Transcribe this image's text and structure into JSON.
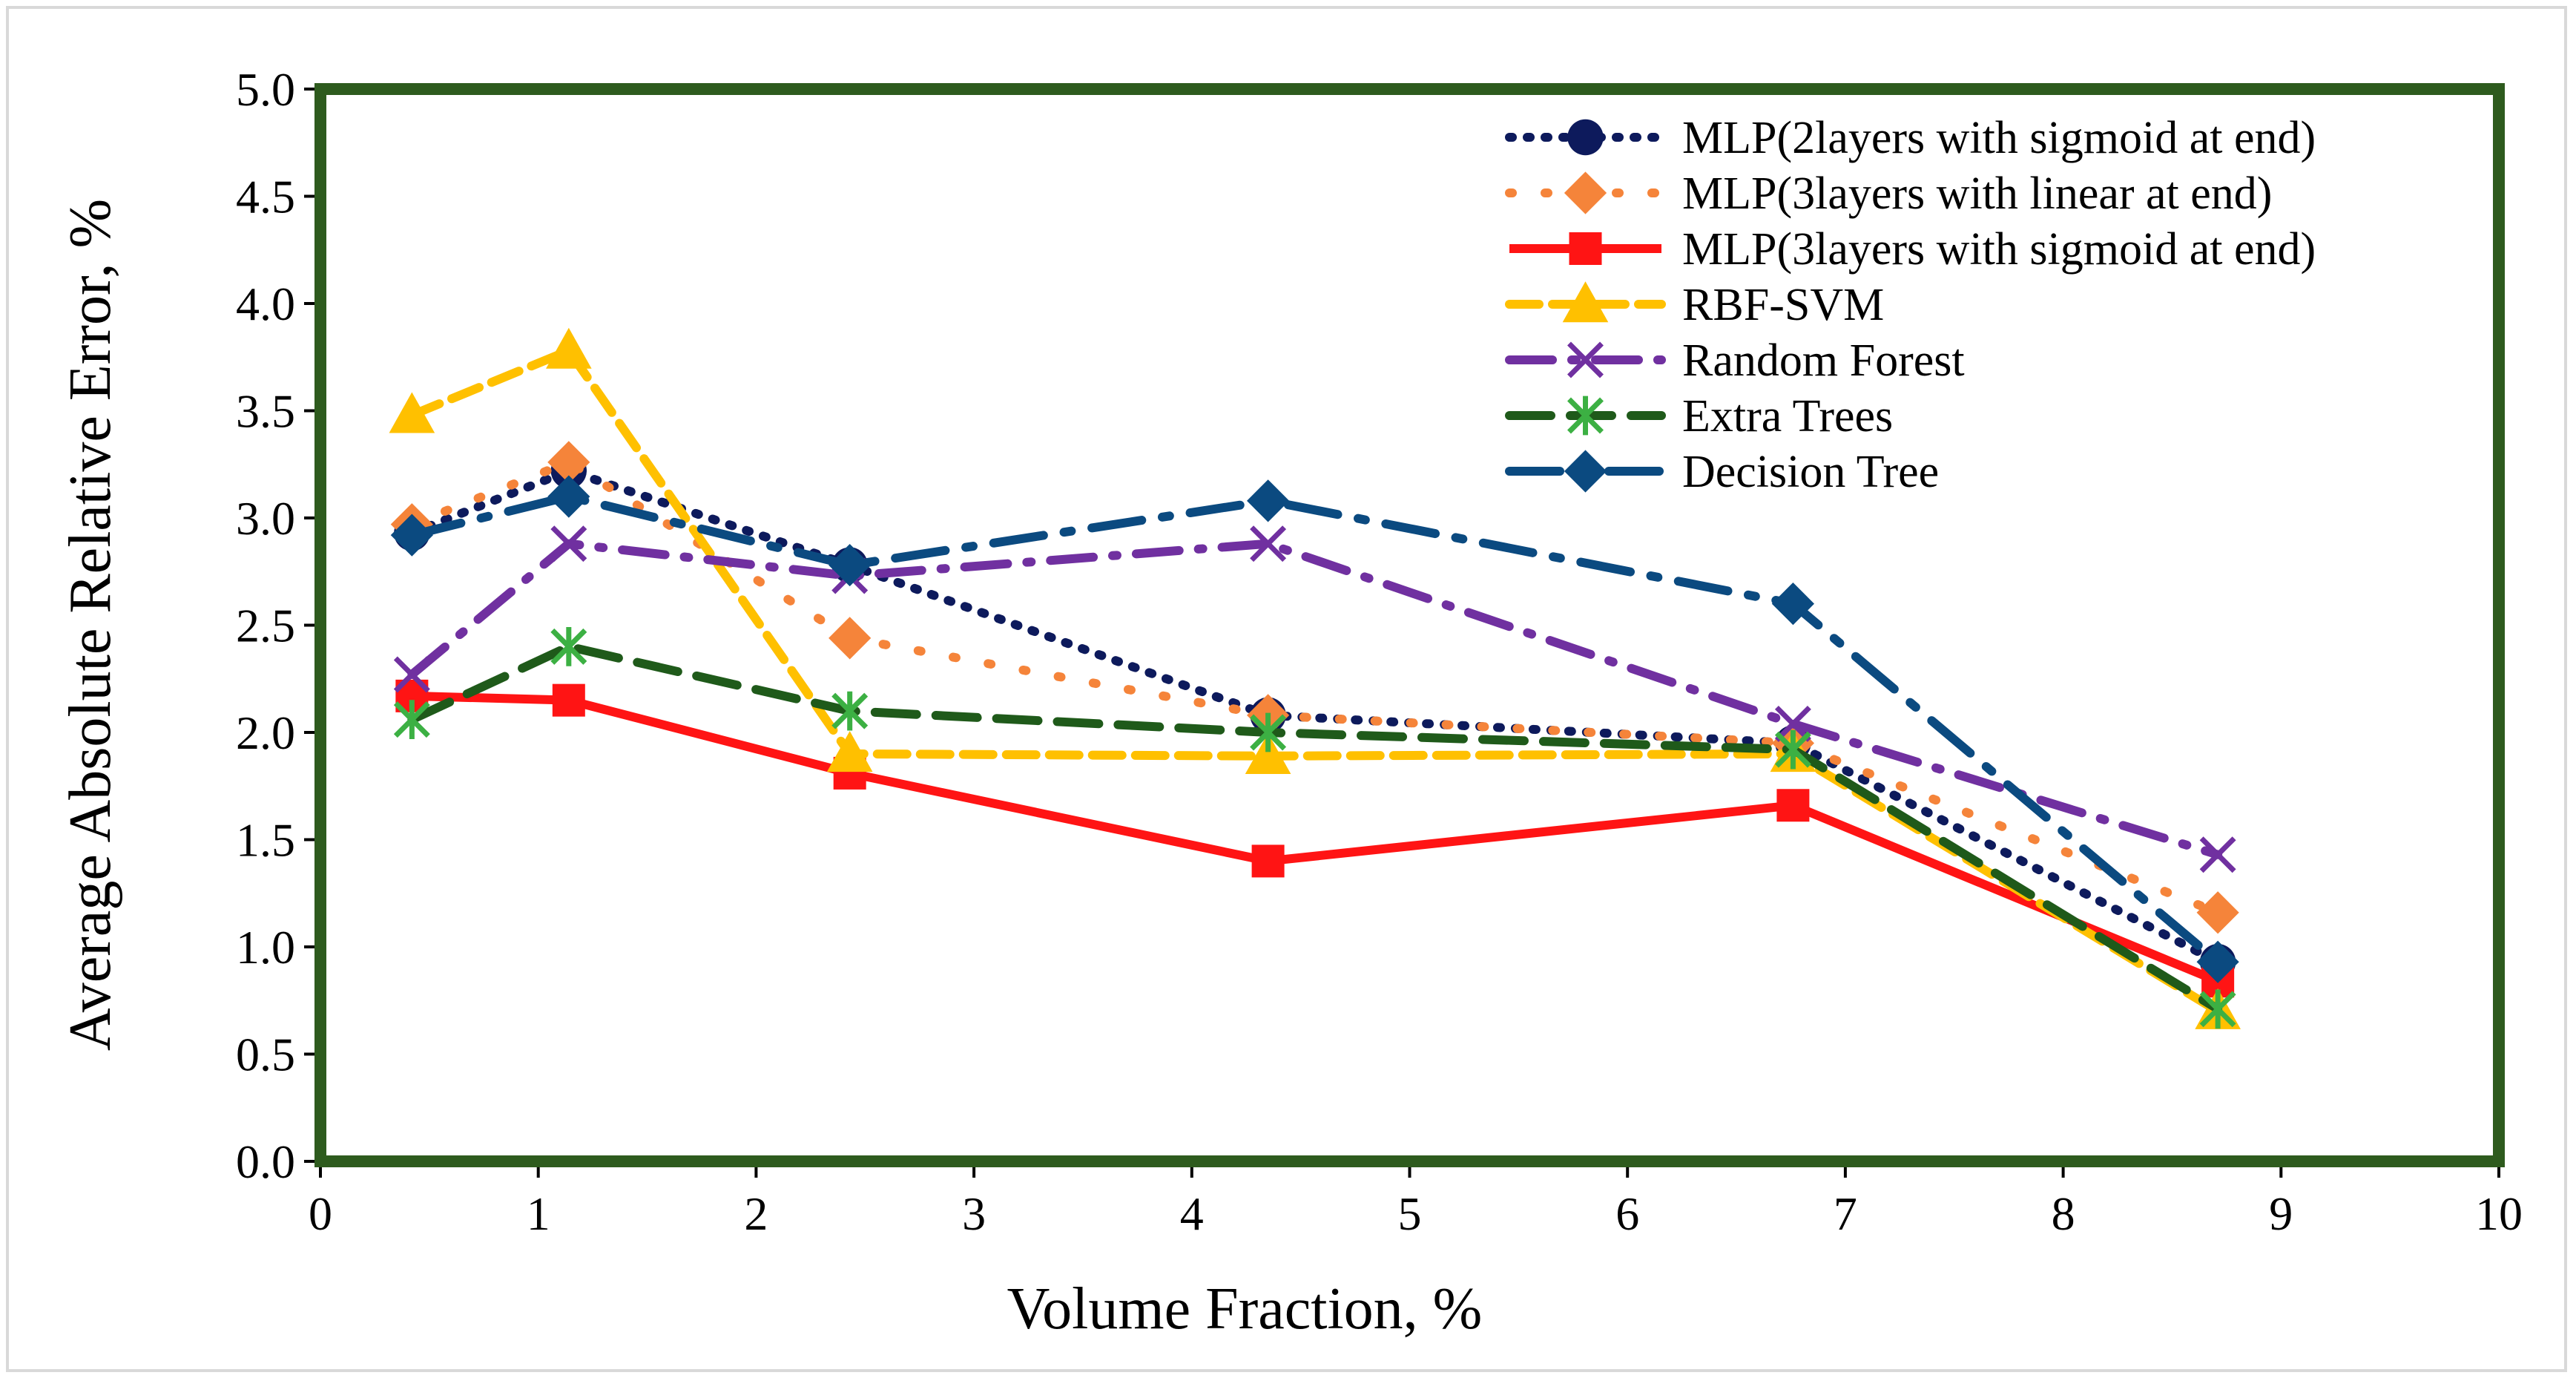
{
  "chart_data": {
    "type": "line",
    "xlabel": "Volume Fraction, %",
    "ylabel": "Average Absolute Relative Error, %",
    "xlim": [
      0,
      10
    ],
    "ylim": [
      0,
      5
    ],
    "x_ticks": [
      "0",
      "1",
      "2",
      "3",
      "4",
      "5",
      "6",
      "7",
      "8",
      "9",
      "10"
    ],
    "y_ticks": [
      "0.0",
      "0.5",
      "1.0",
      "1.5",
      "2.0",
      "2.5",
      "3.0",
      "3.5",
      "4.0",
      "4.5",
      "5.0"
    ],
    "grid": false,
    "legend_position": "top-right",
    "plot_border_color": "#2e5b1e",
    "x": [
      0.42,
      1.14,
      2.43,
      4.35,
      6.76,
      8.71
    ],
    "series": [
      {
        "name": "MLP(2layers with sigmoid at end)",
        "values": [
          2.93,
          3.22,
          2.78,
          2.08,
          1.95,
          0.93
        ],
        "color": "#0d1a5c",
        "dash": "dot",
        "marker": "circle"
      },
      {
        "name": "MLP(3layers with linear at end)",
        "values": [
          2.97,
          3.26,
          2.44,
          2.08,
          1.95,
          1.16
        ],
        "color": "#f5843a",
        "dash": "longdot",
        "marker": "diamond"
      },
      {
        "name": "MLP(3layers with sigmoid at end)",
        "values": [
          2.17,
          2.15,
          1.81,
          1.4,
          1.66,
          0.84
        ],
        "color": "#ff1414",
        "dash": "solid",
        "marker": "square"
      },
      {
        "name": "RBF-SVM",
        "values": [
          3.48,
          3.78,
          1.9,
          1.89,
          1.9,
          0.7
        ],
        "color": "#ffc000",
        "dash": "dash",
        "marker": "triangle"
      },
      {
        "name": "Random Forest",
        "values": [
          2.27,
          2.88,
          2.73,
          2.88,
          2.04,
          1.43
        ],
        "color": "#7030a0",
        "dash": "dashdot",
        "marker": "x"
      },
      {
        "name": "Extra Trees",
        "values": [
          2.06,
          2.4,
          2.1,
          2.0,
          1.92,
          0.71
        ],
        "color": "#1f5a1a",
        "dash": "longdash",
        "marker": "asterisk",
        "marker_color": "#3cb043"
      },
      {
        "name": "Decision Tree",
        "values": [
          2.92,
          3.1,
          2.78,
          3.08,
          2.6,
          0.93
        ],
        "color": "#0b4a80",
        "dash": "dashdot2",
        "marker": "diamond"
      }
    ]
  }
}
